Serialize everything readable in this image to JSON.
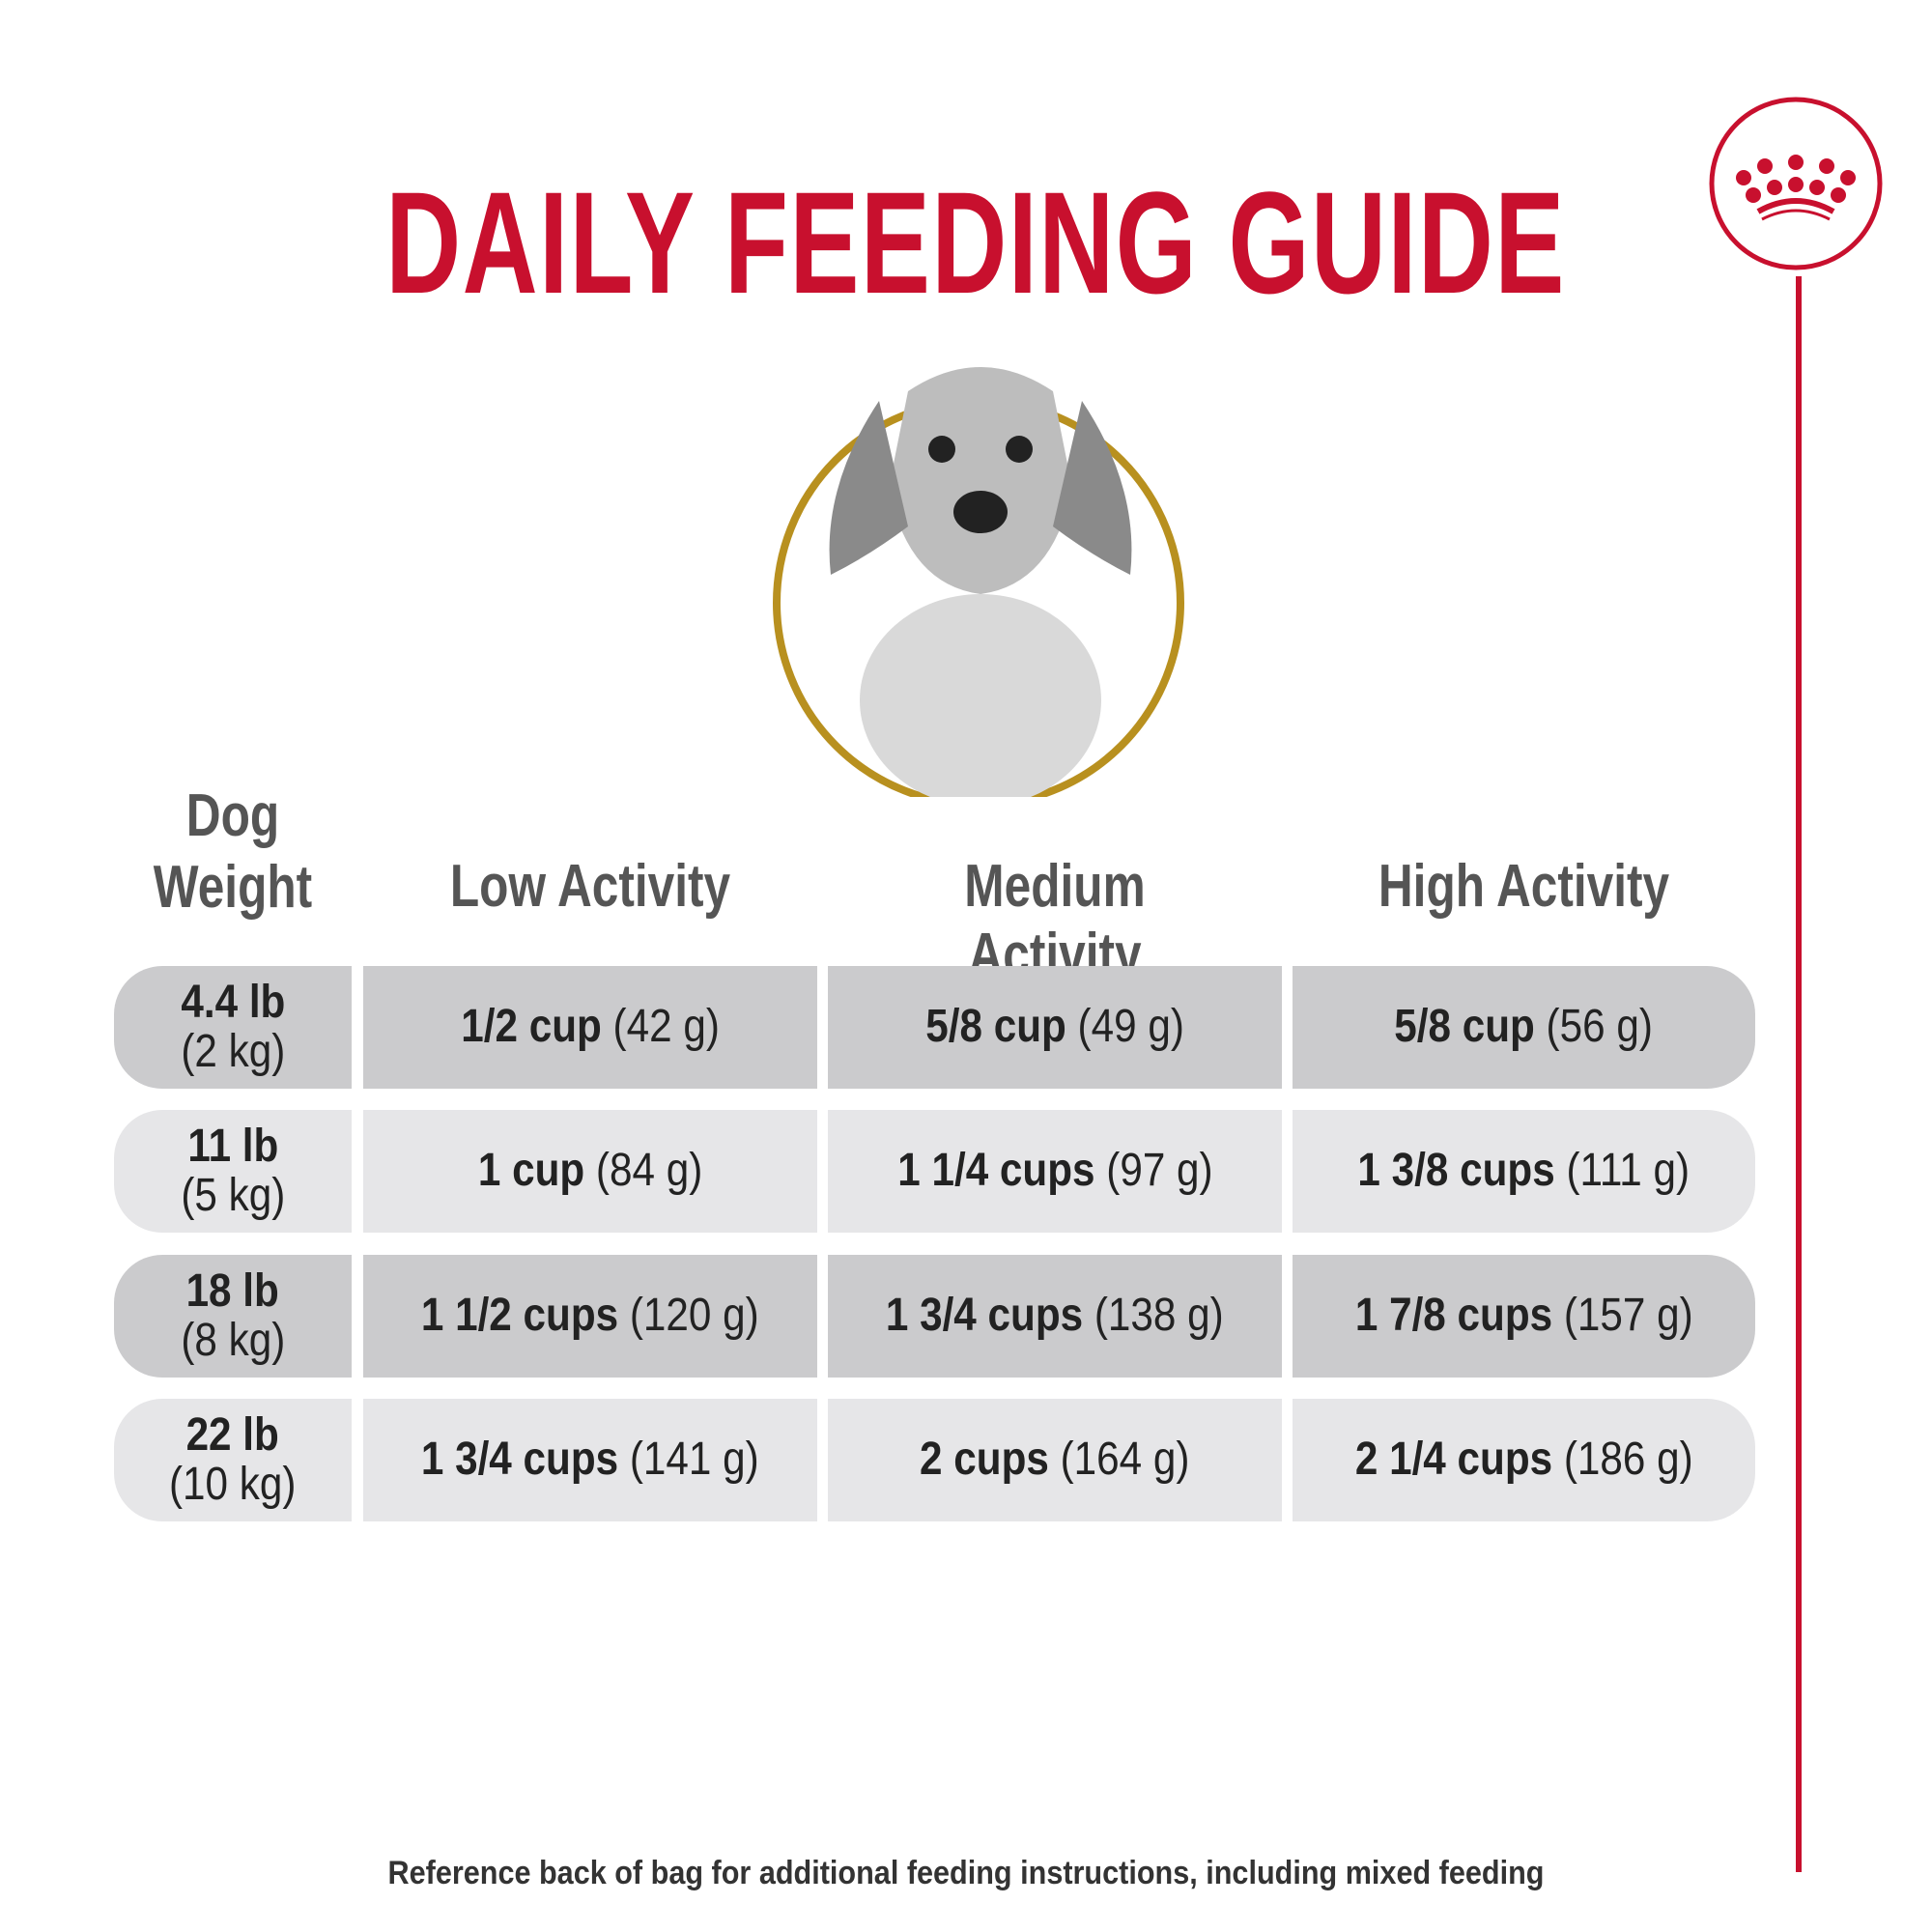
{
  "title": "DAILY FEEDING GUIDE",
  "colors": {
    "brand_red": "#c8102e",
    "gold": "#b8901f",
    "row_dark": "#cbcbcd",
    "row_light": "#e6e6e8"
  },
  "headers": {
    "weight_line1": "Dog",
    "weight_line2": "Weight",
    "low": "Low Activity",
    "medium": "Medium Activity",
    "high": "High Activity"
  },
  "rows": [
    {
      "lb": "4.4 lb",
      "kg": "(2 kg)",
      "low": {
        "cups": "1/2 cup",
        "g": "(42 g)"
      },
      "medium": {
        "cups": "5/8 cup",
        "g": "(49 g)"
      },
      "high": {
        "cups": "5/8 cup",
        "g": "(56 g)"
      }
    },
    {
      "lb": "11 lb",
      "kg": "(5 kg)",
      "low": {
        "cups": "1 cup",
        "g": "(84 g)"
      },
      "medium": {
        "cups": "1 1/4 cups",
        "g": "(97 g)"
      },
      "high": {
        "cups": "1 3/8 cups",
        "g": "(111 g)"
      }
    },
    {
      "lb": "18 lb",
      "kg": "(8 kg)",
      "low": {
        "cups": "1 1/2 cups",
        "g": "(120 g)"
      },
      "medium": {
        "cups": "1 3/4 cups",
        "g": "(138 g)"
      },
      "high": {
        "cups": "1 7/8 cups",
        "g": "(157 g)"
      }
    },
    {
      "lb": "22 lb",
      "kg": "(10 kg)",
      "low": {
        "cups": "1 3/4 cups",
        "g": "(141 g)"
      },
      "medium": {
        "cups": "2 cups",
        "g": "(164 g)"
      },
      "high": {
        "cups": "2 1/4 cups",
        "g": "(186 g)"
      }
    }
  ],
  "footer": "Reference back of bag for additional feeding instructions, including mixed feeding"
}
